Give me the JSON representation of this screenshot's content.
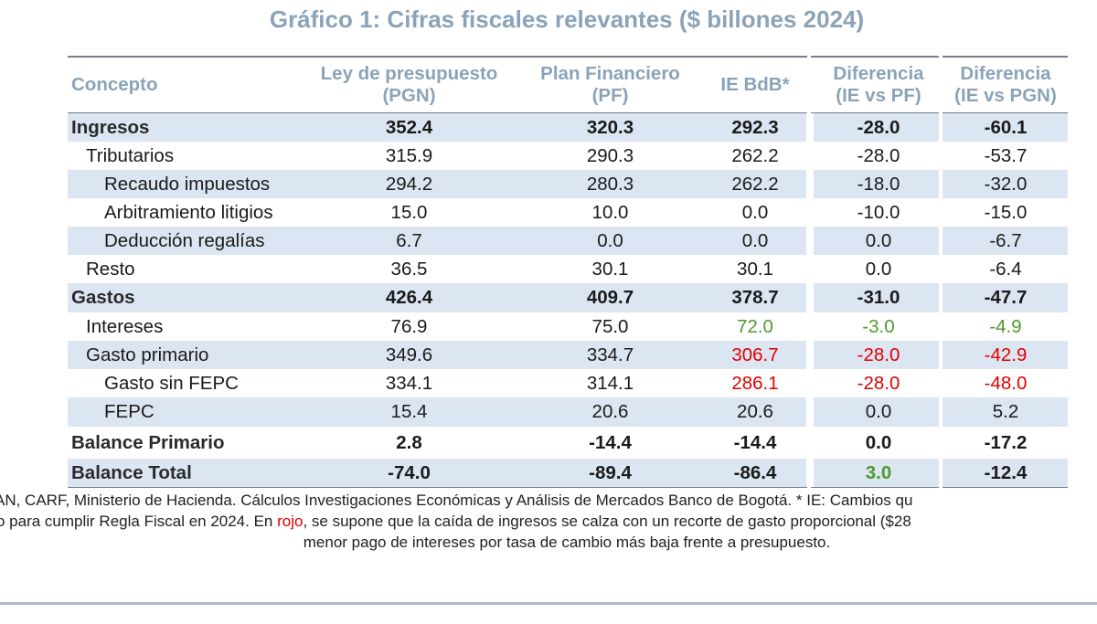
{
  "title": "Gráfico 1: Cifras fiscales relevantes ($ billones 2024)",
  "headers": {
    "concept": "Concepto",
    "pgn": [
      "Ley de presupuesto",
      "(PGN)"
    ],
    "pf": [
      "Plan Financiero",
      "(PF)"
    ],
    "ie": "IE BdB*",
    "diff_pf": [
      "Diferencia",
      "(IE vs PF)"
    ],
    "diff_pgn": [
      "Diferencia",
      "(IE vs PGN)"
    ]
  },
  "chart_data": {
    "type": "table",
    "title": "Gráfico 1: Cifras fiscales relevantes ($ billones 2024)",
    "columns": [
      "Concepto",
      "Ley de presupuesto (PGN)",
      "Plan Financiero (PF)",
      "IE BdB*",
      "Diferencia (IE vs PF)",
      "Diferencia (IE vs PGN)"
    ],
    "rows": [
      {
        "label": "Ingresos",
        "level": 0,
        "bold": true,
        "shaded": true,
        "values": [
          "352.4",
          "320.3",
          "292.3",
          "-28.0",
          "-60.1"
        ]
      },
      {
        "label": "Tributarios",
        "level": 1,
        "bold": false,
        "shaded": false,
        "values": [
          "315.9",
          "290.3",
          "262.2",
          "-28.0",
          "-53.7"
        ]
      },
      {
        "label": "Recaudo impuestos",
        "level": 2,
        "bold": false,
        "shaded": true,
        "values": [
          "294.2",
          "280.3",
          "262.2",
          "-18.0",
          "-32.0"
        ]
      },
      {
        "label": "Arbitramiento litigios",
        "level": 2,
        "bold": false,
        "shaded": false,
        "values": [
          "15.0",
          "10.0",
          "0.0",
          "-10.0",
          "-15.0"
        ]
      },
      {
        "label": "Deducción regalías",
        "level": 2,
        "bold": false,
        "shaded": true,
        "values": [
          "6.7",
          "0.0",
          "0.0",
          "0.0",
          "-6.7"
        ]
      },
      {
        "label": "Resto",
        "level": 1,
        "bold": false,
        "shaded": false,
        "values": [
          "36.5",
          "30.1",
          "30.1",
          "0.0",
          "-6.4"
        ]
      },
      {
        "label": "Gastos",
        "level": 0,
        "bold": true,
        "shaded": true,
        "values": [
          "426.4",
          "409.7",
          "378.7",
          "-31.0",
          "-47.7"
        ]
      },
      {
        "label": "Intereses",
        "level": 1,
        "bold": false,
        "shaded": false,
        "values": [
          "76.9",
          "75.0",
          "72.0",
          "-3.0",
          "-4.9"
        ],
        "colors": [
          "",
          "",
          "#4e9a2f",
          "#4e9a2f",
          "#4e9a2f"
        ]
      },
      {
        "label": "Gasto primario",
        "level": 1,
        "bold": false,
        "shaded": true,
        "values": [
          "349.6",
          "334.7",
          "306.7",
          "-28.0",
          "-42.9"
        ],
        "colors": [
          "",
          "",
          "#e00000",
          "#e00000",
          "#e00000"
        ]
      },
      {
        "label": "Gasto sin FEPC",
        "level": 2,
        "bold": false,
        "shaded": false,
        "values": [
          "334.1",
          "314.1",
          "286.1",
          "-28.0",
          "-48.0"
        ],
        "colors": [
          "",
          "",
          "#e00000",
          "#e00000",
          "#e00000"
        ]
      },
      {
        "label": "FEPC",
        "level": 2,
        "bold": false,
        "shaded": true,
        "values": [
          "15.4",
          "20.6",
          "20.6",
          "0.0",
          "5.2"
        ]
      },
      {
        "label": "Balance Primario",
        "level": 0,
        "bold": true,
        "shaded": false,
        "values": [
          "2.8",
          "-14.4",
          "-14.4",
          "0.0",
          "-17.2"
        ]
      },
      {
        "label": "Balance Total",
        "level": 0,
        "bold": true,
        "shaded": true,
        "values": [
          "-74.0",
          "-89.4",
          "-86.4",
          "3.0",
          "-12.4"
        ],
        "colors": [
          "",
          "",
          "",
          "#4e9a2f",
          ""
        ]
      }
    ]
  },
  "notes": {
    "line1": "AN, CARF, Ministerio de Hacienda. Cálculos Investigaciones Económicas y Análisis de Mercados Banco de Bogotá. * IE: Cambios qu",
    "line2_pre": "o para cumplir Regla Fiscal en 2024. En ",
    "line2_highlight": "rojo",
    "line2_post": ", se supone que la caída de ingresos se calza con un recorte de gasto proporcional ($28",
    "line3": "menor pago de intereses por tasa de cambio más baja frente a presupuesto."
  },
  "colors": {
    "header_text": "#8aa3b8",
    "shade": "#dce6f2",
    "green": "#4e9a2f",
    "red": "#e00000"
  }
}
